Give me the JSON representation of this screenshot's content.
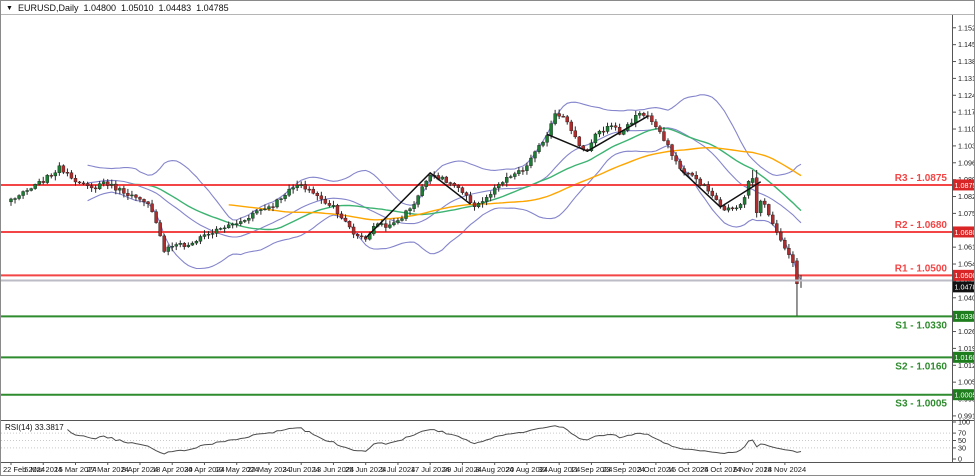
{
  "window": {
    "symbol": "EURUSD,Daily",
    "ohlc": {
      "open": "1.04800",
      "high": "1.05010",
      "low": "1.04483",
      "close": "1.04785"
    }
  },
  "colors": {
    "background": "#ffffff",
    "frame": "#8a8a8a",
    "axis_line": "#555555",
    "axis_text": "#1a1a1a",
    "candle_up": "#1b7e33",
    "candle_down": "#b02c2c",
    "candle_outline": "#1a1a1a",
    "wick": "#2a2a2a",
    "bollinger": "#8585cc",
    "ma_fast": "#3cb371",
    "ma_slow": "#ffa500",
    "resistance_line": "#f34545",
    "resistance_badge": "#d92525",
    "support_line": "#2e8b2e",
    "support_badge": "#1e7e1e",
    "price_line": "#bcbcc6",
    "price_badge": "#111111",
    "trendline": "#111111",
    "rsi_line": "#4d4d4d",
    "rsi_grid": "#c9c9c9"
  },
  "price_axis": {
    "ticks": [
      "1.15270",
      "1.14570",
      "1.13870",
      "1.13170",
      "1.12470",
      "1.11770",
      "1.11070",
      "1.10370",
      "1.09670",
      "1.08970",
      "1.08270",
      "1.07570",
      "1.06870",
      "1.06170",
      "1.05470",
      "1.04770",
      "1.04070",
      "1.03370",
      "1.02670",
      "1.01970",
      "1.01270",
      "1.00570",
      "0.99870",
      "0.99170"
    ],
    "top_price": 1.158,
    "bottom_price": 0.99
  },
  "x_axis": {
    "labels": [
      "22 Feb 2024",
      "5 Mar 2024",
      "15 Mar 2024",
      "27 Mar 2024",
      "8 Apr 2024",
      "18 Apr 2024",
      "30 Apr 2024",
      "10 May 2024",
      "22 May 2024",
      "3 Jun 2024",
      "13 Jun 2024",
      "25 Jun 2024",
      "5 Jul 2024",
      "17 Jul 2024",
      "29 Jul 2024",
      "8 Aug 2024",
      "20 Aug 2024",
      "30 Aug 2024",
      "11 Sep 2024",
      "23 Sep 2024",
      "3 Oct 2024",
      "15 Oct 2024",
      "25 Oct 2024",
      "6 Nov 2024",
      "18 Nov 2024"
    ],
    "bars_per_label": 8
  },
  "levels": [
    {
      "name": "R3",
      "label": "R3 - 1.0875",
      "price": 1.0875,
      "badge": "1.08750",
      "kind": "resistance",
      "label_side": "above"
    },
    {
      "name": "R2",
      "label": "R2 - 1.0680",
      "price": 1.068,
      "badge": "1.06800",
      "kind": "resistance",
      "label_side": "above"
    },
    {
      "name": "R1",
      "label": "R1 - 1.0500",
      "price": 1.05,
      "badge": "1.05000",
      "kind": "resistance",
      "label_side": "above"
    },
    {
      "name": "S1",
      "label": "S1 - 1.0330",
      "price": 1.033,
      "badge": "1.03300",
      "kind": "support",
      "label_side": "below"
    },
    {
      "name": "S2",
      "label": "S2 - 1.0160",
      "price": 1.016,
      "badge": "1.01600",
      "kind": "support",
      "label_side": "below"
    },
    {
      "name": "S3",
      "label": "S3 - 1.0005",
      "price": 1.0005,
      "badge": "1.00050",
      "kind": "support",
      "label_side": "below"
    }
  ],
  "current_price": {
    "value": 1.04785,
    "badge": "1.04785"
  },
  "rsi": {
    "label": "RSI(14) 33.3817",
    "period": 14,
    "value": 33.3817,
    "scale_labels": [
      "100",
      "70",
      "50",
      "30",
      "0"
    ],
    "scale_values": [
      100,
      70,
      50,
      30,
      0
    ],
    "guides": [
      70,
      50,
      30
    ]
  },
  "chart_data": {
    "type": "candlestick",
    "title": "EURUSD Daily with Bollinger Bands, moving averages, pivot support/resistance and RSI(14)",
    "symbol": "EURUSD",
    "timeframe": "Daily",
    "bars_total": 197,
    "ylim": [
      0.99,
      1.158
    ],
    "close_anchors": [
      [
        0,
        1.0815
      ],
      [
        3,
        1.0838
      ],
      [
        6,
        1.087
      ],
      [
        9,
        1.0905
      ],
      [
        12,
        1.0945
      ],
      [
        14,
        1.0928
      ],
      [
        17,
        1.088
      ],
      [
        20,
        1.0858
      ],
      [
        23,
        1.0888
      ],
      [
        26,
        1.0862
      ],
      [
        29,
        1.084
      ],
      [
        32,
        1.0808
      ],
      [
        34,
        1.079
      ],
      [
        36,
        1.0728
      ],
      [
        38,
        1.0606
      ],
      [
        41,
        1.0632
      ],
      [
        44,
        1.0618
      ],
      [
        47,
        1.0662
      ],
      [
        50,
        1.0678
      ],
      [
        53,
        1.07
      ],
      [
        57,
        1.0722
      ],
      [
        61,
        1.0768
      ],
      [
        65,
        1.0792
      ],
      [
        68,
        1.084
      ],
      [
        71,
        1.0872
      ],
      [
        74,
        1.0858
      ],
      [
        77,
        1.0812
      ],
      [
        80,
        1.0788
      ],
      [
        82,
        1.0742
      ],
      [
        85,
        1.0672
      ],
      [
        88,
        1.0655
      ],
      [
        91,
        1.0718
      ],
      [
        94,
        1.0702
      ],
      [
        97,
        1.0742
      ],
      [
        100,
        1.08
      ],
      [
        104,
        1.0925
      ],
      [
        107,
        1.0898
      ],
      [
        110,
        1.0872
      ],
      [
        113,
        1.0822
      ],
      [
        115,
        1.079
      ],
      [
        118,
        1.0818
      ],
      [
        121,
        1.0872
      ],
      [
        124,
        1.0912
      ],
      [
        127,
        1.0935
      ],
      [
        130,
        1.1005
      ],
      [
        133,
        1.1085
      ],
      [
        135,
        1.118
      ],
      [
        137,
        1.1155
      ],
      [
        139,
        1.1105
      ],
      [
        141,
        1.1042
      ],
      [
        143,
        1.1015
      ],
      [
        145,
        1.1078
      ],
      [
        147,
        1.1102
      ],
      [
        149,
        1.1128
      ],
      [
        151,
        1.1088
      ],
      [
        153,
        1.1122
      ],
      [
        156,
        1.1175
      ],
      [
        158,
        1.116
      ],
      [
        160,
        1.1115
      ],
      [
        162,
        1.106
      ],
      [
        164,
        1.1005
      ],
      [
        166,
        1.094
      ],
      [
        168,
        1.0922
      ],
      [
        170,
        1.0898
      ],
      [
        172,
        1.0868
      ],
      [
        174,
        1.0832
      ],
      [
        176,
        1.0783
      ],
      [
        178,
        1.0772
      ],
      [
        180,
        1.0788
      ],
      [
        181,
        1.08
      ],
      [
        182,
        1.0832
      ],
      [
        183,
        1.089
      ],
      [
        184,
        1.0902
      ],
      [
        185,
        1.076
      ],
      [
        186,
        1.0812
      ],
      [
        187,
        1.0795
      ],
      [
        188,
        1.0748
      ],
      [
        189,
        1.0715
      ],
      [
        190,
        1.0682
      ],
      [
        191,
        1.0648
      ],
      [
        192,
        1.0615
      ],
      [
        193,
        1.0585
      ],
      [
        194,
        1.0552
      ],
      [
        195,
        1.0465
      ],
      [
        196,
        1.04785
      ]
    ],
    "overrides": {
      "183": [
        1.0832,
        1.0895,
        1.0818,
        1.089
      ],
      "184": [
        1.0885,
        1.0937,
        1.0868,
        1.0902
      ],
      "185": [
        1.0905,
        1.0937,
        1.074,
        1.076
      ],
      "195": [
        1.056,
        1.0572,
        1.0333,
        1.0465
      ],
      "196": [
        1.048,
        1.0501,
        1.04483,
        1.04785
      ]
    },
    "overlays": [
      {
        "name": "Bollinger Bands (20,2)",
        "color_key": "bollinger",
        "period": 20,
        "deviation": 2
      },
      {
        "name": "MA fast",
        "color_key": "ma_fast",
        "period": 30
      },
      {
        "name": "MA slow",
        "color_key": "ma_slow",
        "period": 55
      }
    ],
    "trendlines": [
      {
        "points": [
          [
            88,
            1.0655
          ],
          [
            104,
            1.0925
          ],
          [
            114,
            1.0795
          ]
        ]
      },
      {
        "points": [
          [
            133,
            1.1085
          ],
          [
            143,
            1.1015
          ],
          [
            158,
            1.116
          ]
        ]
      },
      {
        "points": [
          [
            166,
            1.094
          ],
          [
            176,
            1.0783
          ],
          [
            186,
            1.0888
          ]
        ]
      }
    ]
  }
}
